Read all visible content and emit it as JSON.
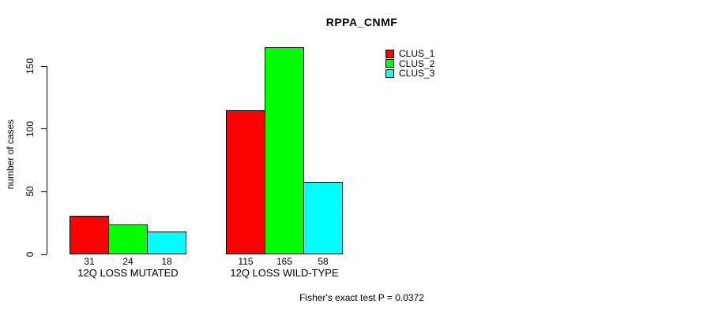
{
  "title": "RPPA_CNMF",
  "ylabel": "number of cases",
  "footer": "Fisher's exact test P = 0.0372",
  "colors": {
    "background": "#FFFFFF",
    "axis": "#000000",
    "text": "#000000",
    "clus_1": "#FF0000",
    "clus_2": "#00FF00",
    "clus_3": "#00FFFF"
  },
  "legend": {
    "position": "top-right-inside",
    "items": [
      {
        "label": "CLUS_1",
        "color": "#FF0000"
      },
      {
        "label": "CLUS_2",
        "color": "#00FF00"
      },
      {
        "label": "CLUS_3",
        "color": "#00FFFF"
      }
    ]
  },
  "chart_data": {
    "type": "bar",
    "grouped": true,
    "title": "RPPA_CNMF",
    "xlabel": "",
    "ylabel": "number of cases",
    "categories": [
      "12Q LOSS MUTATED",
      "12Q LOSS WILD-TYPE"
    ],
    "series": [
      {
        "name": "CLUS_1",
        "color": "#FF0000",
        "values": [
          31,
          115
        ]
      },
      {
        "name": "CLUS_2",
        "color": "#00FF00",
        "values": [
          24,
          165
        ]
      },
      {
        "name": "CLUS_3",
        "color": "#00FFFF",
        "values": [
          18,
          58
        ]
      }
    ],
    "bar_value_labels": [
      [
        "31",
        "24",
        "18"
      ],
      [
        "115",
        "165",
        "58"
      ]
    ],
    "yticks": [
      0,
      50,
      100,
      150
    ],
    "ylim": [
      0,
      165
    ],
    "grid": false,
    "legend_position": "top-right-inside",
    "annotation": "Fisher's exact test P = 0.0372"
  }
}
